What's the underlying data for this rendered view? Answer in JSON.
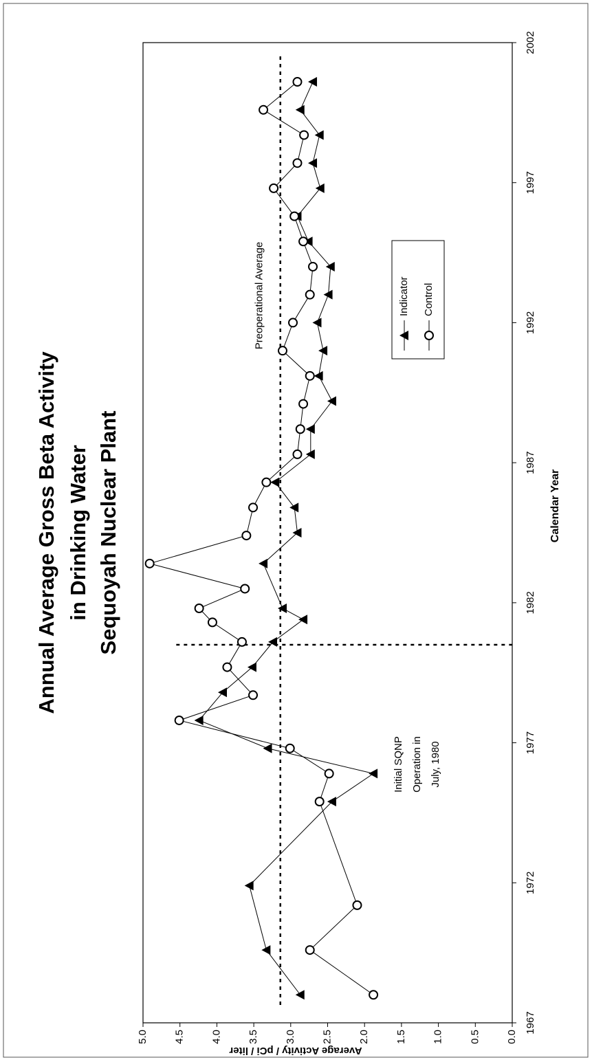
{
  "chart_data": {
    "type": "line",
    "title": [
      "Annual Average Gross Beta Activity",
      "in Drinking Water",
      "Sequoyah Nuclear Plant"
    ],
    "xlabel": "Calendar Year",
    "ylabel": "Average Activity / pCi / liter",
    "xlim": [
      1967,
      2002
    ],
    "xticks": [
      1967,
      1972,
      1977,
      1982,
      1987,
      1992,
      1997,
      2002
    ],
    "ylim": [
      0,
      5
    ],
    "yticks": [
      {
        "value": 0,
        "label": "0.0"
      },
      {
        "value": 0.5,
        "label": "0.5"
      },
      {
        "value": 1,
        "label": "1.0"
      },
      {
        "value": 1.5,
        "label": "1.5"
      },
      {
        "value": 2,
        "label": "2.0"
      },
      {
        "value": 2.5,
        "label": "2.5"
      },
      {
        "value": 3,
        "label": "3.0"
      },
      {
        "value": 3.5,
        "label": "3.5"
      },
      {
        "value": 4,
        "label": "4.0"
      },
      {
        "value": 4.5,
        "label": "4.5"
      },
      {
        "value": 5,
        "label": "5.0"
      }
    ],
    "grid": false,
    "series": [
      {
        "name": "Indicator",
        "marker": "triangle",
        "color": "#000000",
        "x": [
          1968.0,
          1969.6,
          1971.9,
          1974.9,
          1975.9,
          1976.8,
          1977.8,
          1978.8,
          1979.7,
          1980.6,
          1981.4,
          1981.8,
          1983.4,
          1984.5,
          1985.4,
          1986.3,
          1987.3,
          1988.2,
          1989.2,
          1990.1,
          1991.0,
          1992.0,
          1993.0,
          1994.0,
          1994.9,
          1995.8,
          1996.8,
          1997.7,
          1998.7,
          1999.6,
          2000.6
        ],
        "values": [
          2.87,
          3.33,
          3.56,
          2.44,
          1.88,
          3.31,
          4.24,
          3.92,
          3.52,
          3.24,
          2.83,
          3.11,
          3.37,
          2.91,
          2.95,
          3.21,
          2.73,
          2.73,
          2.44,
          2.62,
          2.56,
          2.64,
          2.49,
          2.46,
          2.76,
          2.91,
          2.6,
          2.7,
          2.61,
          2.87,
          2.7
        ]
      },
      {
        "name": "Control",
        "marker": "circle",
        "color": "#000000",
        "x": [
          1968.0,
          1969.6,
          1971.2,
          1974.9,
          1975.9,
          1976.8,
          1977.8,
          1978.7,
          1979.7,
          1980.6,
          1981.3,
          1981.8,
          1982.5,
          1983.4,
          1984.4,
          1985.4,
          1986.3,
          1987.3,
          1988.2,
          1989.1,
          1990.1,
          1991.0,
          1992.0,
          1993.0,
          1994.0,
          1994.9,
          1995.8,
          1996.8,
          1997.7,
          1998.7,
          1999.6,
          2000.6
        ],
        "values": [
          1.88,
          2.74,
          2.1,
          2.61,
          2.48,
          3.01,
          4.51,
          3.51,
          3.86,
          3.66,
          4.06,
          4.24,
          3.62,
          4.91,
          3.6,
          3.51,
          3.33,
          2.91,
          2.87,
          2.83,
          2.74,
          3.11,
          2.97,
          2.74,
          2.7,
          2.83,
          2.95,
          3.23,
          2.91,
          2.82,
          3.37,
          2.91
        ]
      }
    ],
    "reference_lines": [
      {
        "axis": "y",
        "value": 3.14,
        "label": [
          "Preoperational Average"
        ]
      },
      {
        "axis": "x",
        "value": 1980.5,
        "label": [
          "Initial SQNP",
          "Operation in",
          "July, 1980"
        ]
      }
    ]
  }
}
